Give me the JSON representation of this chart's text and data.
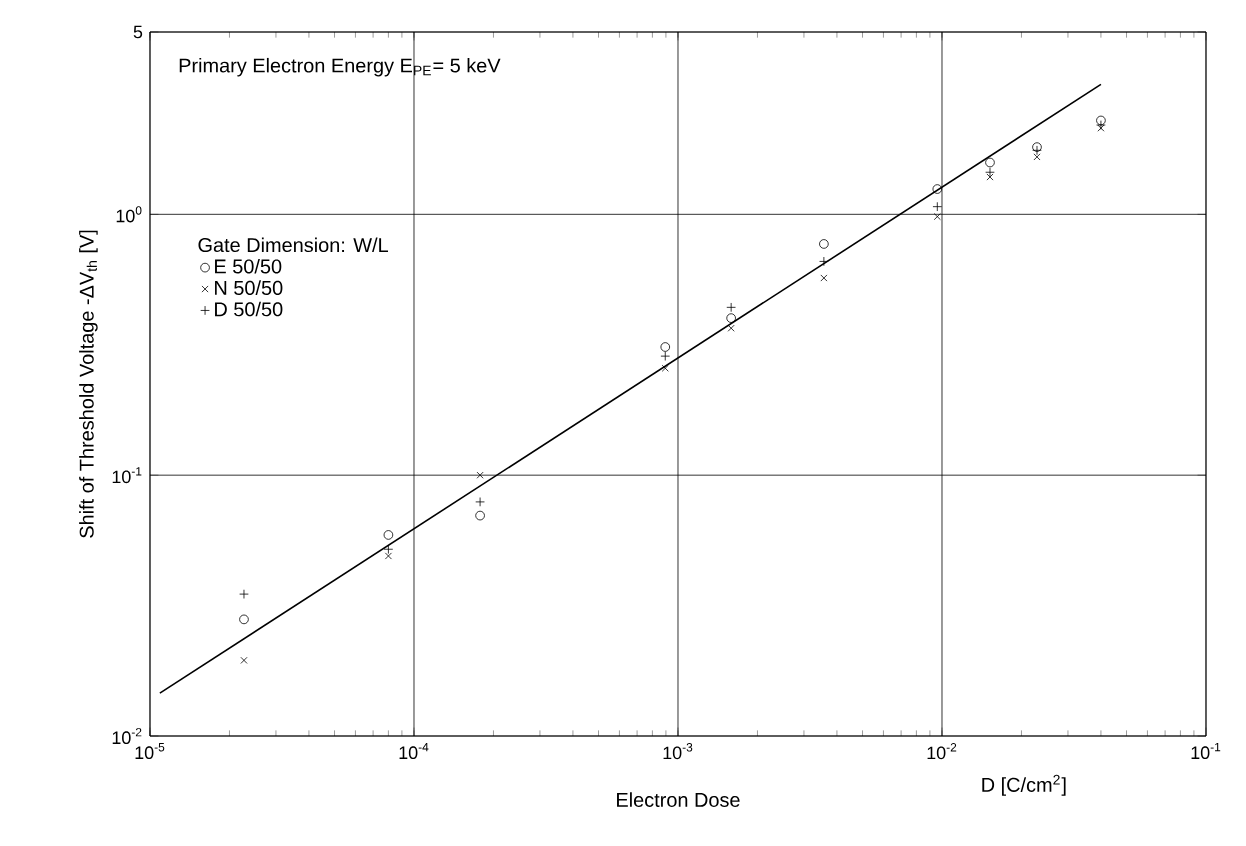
{
  "chart_data": {
    "type": "scatter",
    "xlabel": "Electron Dose",
    "ylabel": "Shift of Threshold Voltage -ΔV$_{th}$ [V]",
    "legend_title": "Gate Dimension: W/L",
    "annotations": [
      "Primary Electron Energy E$_{PE}$= 5 keV",
      "D [C/cm$^{2}$]"
    ],
    "log": "xy",
    "grid": true,
    "legend": "top left",
    "xlim": [
      1e-05,
      0.1
    ],
    "ylim": [
      0.01,
      5
    ],
    "xticks": [
      {
        "value": 1e-05,
        "label": "10$^{-5}$"
      },
      {
        "value": 0.0001,
        "label": "10$^{-4}$"
      },
      {
        "value": 0.001,
        "label": "10$^{-3}$"
      },
      {
        "value": 0.01,
        "label": "10$^{-2}$"
      },
      {
        "value": 0.1,
        "label": "10$^{-1}$"
      }
    ],
    "yticks": [
      {
        "value": 0.01,
        "label": "10$^{-2}$"
      },
      {
        "value": 0.1,
        "label": "10$^{-1}$"
      },
      {
        "value": 1,
        "label": "10$^{0}$"
      },
      5
    ],
    "series": [
      {
        "name": "E 50/50",
        "color": "#000000",
        "marker": "circle",
        "x": [
          2.27e-05,
          8e-05,
          0.000178,
          0.000895,
          0.00159,
          0.00357,
          0.0096,
          0.0152,
          0.0229,
          0.04
        ],
        "values": [
          0.028,
          0.059,
          0.07,
          0.31,
          0.4,
          0.77,
          1.25,
          1.58,
          1.81,
          2.29
        ]
      },
      {
        "name": "N 50/50",
        "color": "#000000",
        "marker": "cross",
        "x": [
          2.27e-05,
          8e-05,
          0.000178,
          0.000895,
          0.00159,
          0.00357,
          0.0096,
          0.0152,
          0.0229,
          0.04
        ],
        "values": [
          0.0195,
          0.049,
          0.1,
          0.257,
          0.366,
          0.57,
          0.98,
          1.39,
          1.66,
          2.14
        ]
      },
      {
        "name": "D 50/50",
        "color": "#000000",
        "marker": "plus",
        "x": [
          2.27e-05,
          8e-05,
          0.000178,
          0.000895,
          0.00159,
          0.00357,
          0.0096,
          0.0152,
          0.0229,
          0.04
        ],
        "values": [
          0.035,
          0.052,
          0.079,
          0.286,
          0.44,
          0.66,
          1.07,
          1.45,
          1.76,
          2.2
        ]
      },
      {
        "type": "line",
        "color": "#000000",
        "marker": "none",
        "line_style": "solid",
        "x": [
          1.09e-05,
          0.04
        ],
        "values": [
          0.0146,
          3.15
        ]
      }
    ]
  }
}
